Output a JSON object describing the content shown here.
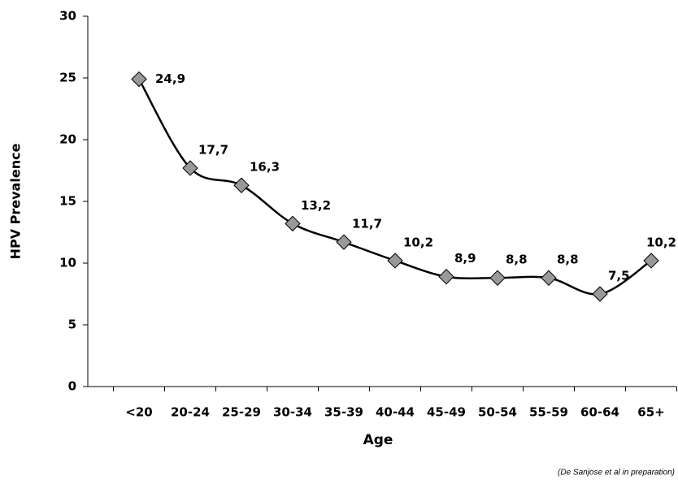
{
  "chart_data": {
    "type": "line",
    "x_label": "Age",
    "y_label": "HPV Prevalence",
    "categories": [
      "<20",
      "20-24",
      "25-29",
      "30-34",
      "35-39",
      "40-44",
      "45-49",
      "50-54",
      "55-59",
      "60-64",
      "65+"
    ],
    "values": [
      24.9,
      17.7,
      16.3,
      13.2,
      11.7,
      10.2,
      8.9,
      8.8,
      8.8,
      7.5,
      10.2
    ],
    "value_labels": [
      "24,9",
      "17,7",
      "16,3",
      "13,2",
      "11,7",
      "10,2",
      "8,9",
      "8,8",
      "8,8",
      "7,5",
      "10,2"
    ],
    "color": "#000000",
    "marker_color": "#999999",
    "ylim": [
      0,
      30
    ],
    "yticks": [
      0,
      5,
      10,
      15,
      20,
      25,
      30
    ],
    "source": "(De Sanjose et al in preparation)"
  }
}
